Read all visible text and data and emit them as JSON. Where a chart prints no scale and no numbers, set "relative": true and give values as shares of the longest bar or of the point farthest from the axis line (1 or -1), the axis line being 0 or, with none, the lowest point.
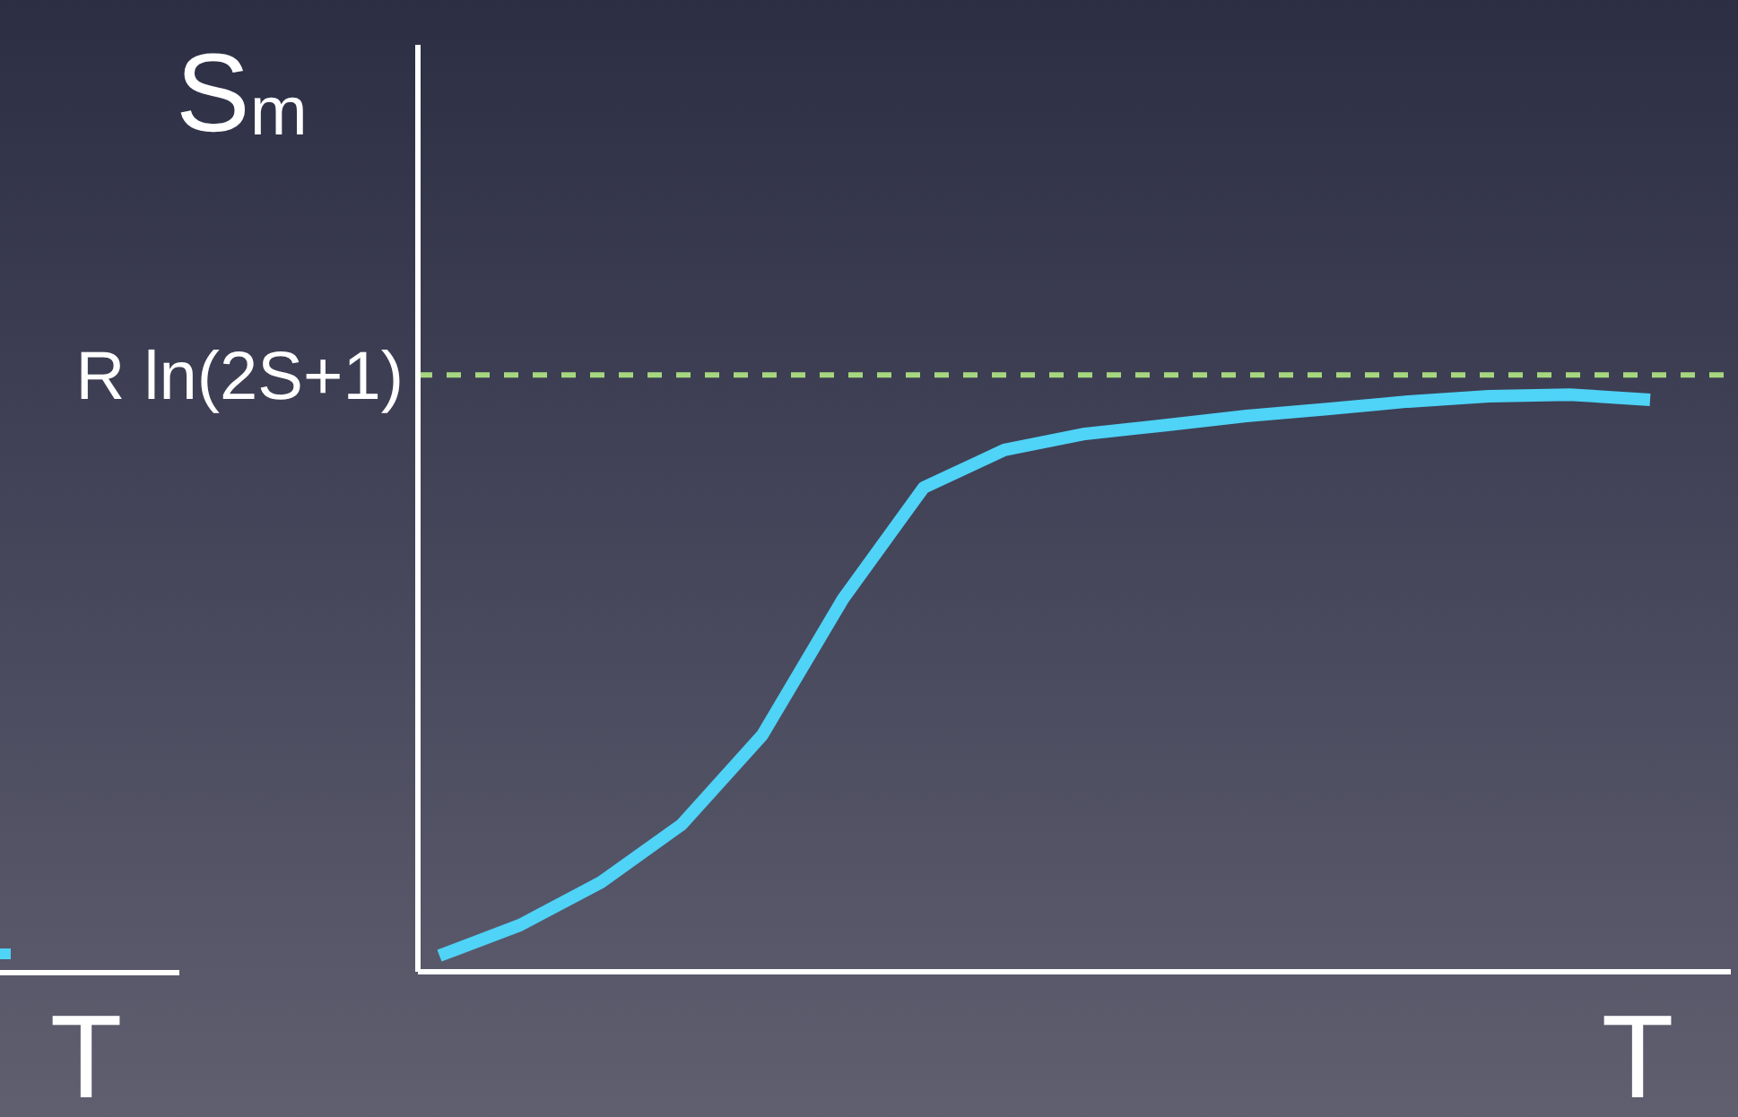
{
  "chart_data": [
    {
      "type": "other",
      "xlabel": "T"
    },
    {
      "type": "line",
      "relative": true,
      "xlabel": "T",
      "ylabel": "S$_{m}$",
      "marker": "none",
      "categories": [
        null,
        null,
        null,
        null,
        null,
        null,
        null,
        null,
        null,
        null,
        null,
        null,
        null,
        null,
        null,
        null
      ],
      "series": [
        {
          "color": "#4fd3f7",
          "values": [
            0.028,
            0.081,
            0.155,
            0.255,
            0.41,
            0.646,
            0.839,
            0.904,
            0.932,
            0.947,
            0.963,
            0.975,
            0.988,
            0.997,
            1,
            0.991
          ]
        }
      ],
      "ref_lines": [
        {
          "axis": "y",
          "value": 1.034,
          "label": "R ln(2S+1)",
          "color": "#a6d77f",
          "line_style": "dashed"
        }
      ]
    }
  ]
}
